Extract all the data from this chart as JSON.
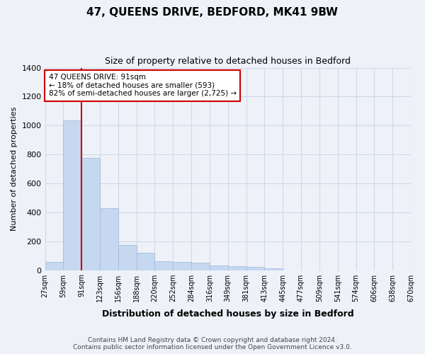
{
  "title": "47, QUEENS DRIVE, BEDFORD, MK41 9BW",
  "subtitle": "Size of property relative to detached houses in Bedford",
  "xlabel": "Distribution of detached houses by size in Bedford",
  "ylabel": "Number of detached properties",
  "footer_line1": "Contains HM Land Registry data © Crown copyright and database right 2024.",
  "footer_line2": "Contains public sector information licensed under the Open Government Licence v3.0.",
  "annotation_title": "47 QUEENS DRIVE: 91sqm",
  "annotation_line2": "← 18% of detached houses are smaller (593)",
  "annotation_line3": "82% of semi-detached houses are larger (2,725) →",
  "property_size": 91,
  "property_bin_index": 2,
  "bins": [
    27,
    59,
    91,
    123,
    156,
    188,
    220,
    252,
    284,
    316,
    349,
    381,
    413,
    445,
    477,
    509,
    541,
    574,
    606,
    638,
    670
  ],
  "bin_labels": [
    "27sqm",
    "59sqm",
    "91sqm",
    "123sqm",
    "156sqm",
    "188sqm",
    "220sqm",
    "252sqm",
    "284sqm",
    "316sqm",
    "349sqm",
    "381sqm",
    "413sqm",
    "445sqm",
    "477sqm",
    "509sqm",
    "541sqm",
    "574sqm",
    "606sqm",
    "638sqm",
    "670sqm"
  ],
  "values": [
    57,
    1035,
    775,
    430,
    175,
    120,
    60,
    55,
    50,
    30,
    25,
    20,
    10,
    0,
    0,
    0,
    0,
    0,
    0,
    0
  ],
  "bar_color": "#c5d8f0",
  "bar_edgecolor": "#a0b8d8",
  "highlight_line_color": "#cc0000",
  "annotation_box_edgecolor": "#cc0000",
  "annotation_box_facecolor": "#ffffff",
  "grid_color": "#d0d8e8",
  "background_color": "#eef2f8",
  "ylim": [
    0,
    1400
  ],
  "yticks": [
    0,
    200,
    400,
    600,
    800,
    1000,
    1200,
    1400
  ]
}
